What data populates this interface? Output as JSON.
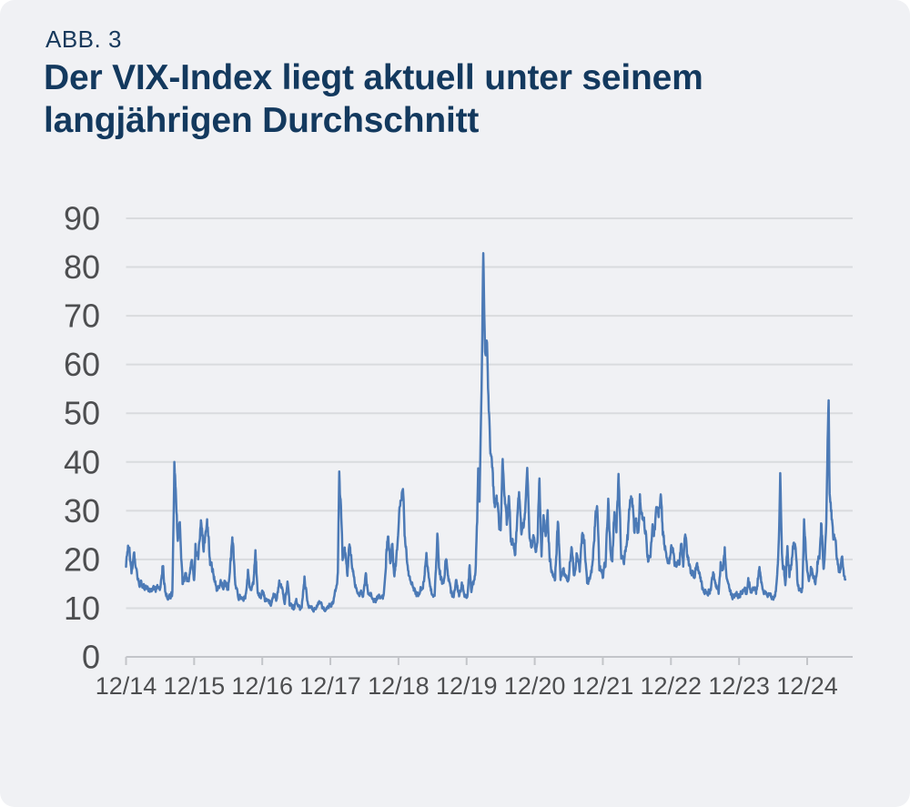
{
  "figure_label": "ABB. 3",
  "title": {
    "full": "Der VIX-Index liegt aktuell unter seinem langjährigen Durchschnitt",
    "line1": "Der VIX-Index liegt aktuell unter seinem",
    "line2": "langjährigen Durchschnitt"
  },
  "colors": {
    "card_background": "#f0f1f4",
    "title_color": "#13395e",
    "line_color": "#4c7ab6",
    "grid_color": "#d9dbde",
    "axis_color": "#c3c5c9",
    "tick_label_color": "#4d4e50"
  },
  "chart_data": {
    "type": "line",
    "series_name": "VIX-Index",
    "legend": "none",
    "grid": "horizontal",
    "x_tick_labels": [
      "12/14",
      "12/15",
      "12/16",
      "12/17",
      "12/18",
      "12/19",
      "12/20",
      "12/21",
      "12/22",
      "12/23",
      "12/24"
    ],
    "y_tick_labels": [
      "0",
      "10",
      "20",
      "30",
      "40",
      "50",
      "60",
      "70",
      "80",
      "90"
    ],
    "ylim": [
      0,
      90
    ],
    "xlim_years_from_first_tick": [
      0,
      10.56
    ],
    "points_unit": "[years after 12/14 tick, VIX close]",
    "points": [
      [
        0.0,
        19.2
      ],
      [
        0.04,
        23.4
      ],
      [
        0.08,
        17.3
      ],
      [
        0.12,
        20.8
      ],
      [
        0.17,
        15.6
      ],
      [
        0.25,
        14.2
      ],
      [
        0.33,
        13.8
      ],
      [
        0.42,
        14.0
      ],
      [
        0.5,
        14.3
      ],
      [
        0.54,
        18.8
      ],
      [
        0.58,
        12.8
      ],
      [
        0.63,
        12.2
      ],
      [
        0.68,
        13.0
      ],
      [
        0.71,
        40.7
      ],
      [
        0.74,
        30.5
      ],
      [
        0.76,
        24.5
      ],
      [
        0.79,
        27.5
      ],
      [
        0.83,
        15.2
      ],
      [
        0.88,
        16.5
      ],
      [
        0.92,
        15.3
      ],
      [
        0.96,
        20.0
      ],
      [
        1.0,
        15.8
      ],
      [
        1.02,
        22.5
      ],
      [
        1.06,
        20.5
      ],
      [
        1.1,
        27.3
      ],
      [
        1.14,
        22.0
      ],
      [
        1.19,
        27.9
      ],
      [
        1.24,
        19.0
      ],
      [
        1.29,
        16.5
      ],
      [
        1.33,
        14.0
      ],
      [
        1.38,
        15.5
      ],
      [
        1.42,
        14.7
      ],
      [
        1.46,
        15.3
      ],
      [
        1.5,
        14.0
      ],
      [
        1.54,
        20.0
      ],
      [
        1.56,
        25.8
      ],
      [
        1.6,
        15.0
      ],
      [
        1.65,
        12.5
      ],
      [
        1.7,
        11.9
      ],
      [
        1.75,
        12.0
      ],
      [
        1.79,
        17.5
      ],
      [
        1.83,
        13.0
      ],
      [
        1.87,
        15.5
      ],
      [
        1.9,
        22.3
      ],
      [
        1.93,
        13.3
      ],
      [
        1.97,
        12.0
      ],
      [
        2.0,
        13.2
      ],
      [
        2.04,
        11.8
      ],
      [
        2.08,
        11.5
      ],
      [
        2.13,
        11.2
      ],
      [
        2.17,
        12.9
      ],
      [
        2.21,
        11.5
      ],
      [
        2.25,
        15.6
      ],
      [
        2.29,
        13.5
      ],
      [
        2.33,
        10.6
      ],
      [
        2.37,
        15.2
      ],
      [
        2.4,
        10.5
      ],
      [
        2.46,
        10.0
      ],
      [
        2.5,
        11.2
      ],
      [
        2.54,
        9.9
      ],
      [
        2.58,
        10.3
      ],
      [
        2.62,
        16.0
      ],
      [
        2.67,
        10.6
      ],
      [
        2.71,
        10.2
      ],
      [
        2.75,
        9.7
      ],
      [
        2.79,
        10.0
      ],
      [
        2.83,
        11.3
      ],
      [
        2.88,
        10.2
      ],
      [
        2.92,
        9.6
      ],
      [
        2.96,
        10.2
      ],
      [
        3.0,
        11.0
      ],
      [
        3.04,
        11.3
      ],
      [
        3.08,
        13.5
      ],
      [
        3.11,
        17.3
      ],
      [
        3.13,
        37.3
      ],
      [
        3.16,
        29.0
      ],
      [
        3.18,
        19.5
      ],
      [
        3.21,
        22.5
      ],
      [
        3.25,
        16.5
      ],
      [
        3.28,
        23.0
      ],
      [
        3.31,
        20.0
      ],
      [
        3.35,
        15.9
      ],
      [
        3.4,
        13.2
      ],
      [
        3.44,
        13.5
      ],
      [
        3.48,
        12.2
      ],
      [
        3.52,
        16.9
      ],
      [
        3.56,
        12.8
      ],
      [
        3.6,
        12.9
      ],
      [
        3.65,
        11.3
      ],
      [
        3.7,
        12.5
      ],
      [
        3.74,
        12.0
      ],
      [
        3.78,
        12.1
      ],
      [
        3.82,
        21.0
      ],
      [
        3.85,
        25.0
      ],
      [
        3.88,
        19.5
      ],
      [
        3.91,
        22.5
      ],
      [
        3.94,
        16.5
      ],
      [
        3.98,
        21.5
      ],
      [
        4.02,
        30.1
      ],
      [
        4.065,
        36.1
      ],
      [
        4.09,
        25.5
      ],
      [
        4.13,
        19.0
      ],
      [
        4.17,
        16.0
      ],
      [
        4.21,
        14.5
      ],
      [
        4.25,
        13.5
      ],
      [
        4.29,
        12.5
      ],
      [
        4.33,
        13.8
      ],
      [
        4.37,
        15.5
      ],
      [
        4.41,
        20.5
      ],
      [
        4.45,
        16.0
      ],
      [
        4.49,
        13.0
      ],
      [
        4.53,
        12.2
      ],
      [
        4.57,
        24.6
      ],
      [
        4.6,
        18.0
      ],
      [
        4.63,
        16.0
      ],
      [
        4.66,
        14.7
      ],
      [
        4.7,
        20.5
      ],
      [
        4.73,
        17.0
      ],
      [
        4.77,
        12.8
      ],
      [
        4.81,
        12.5
      ],
      [
        4.85,
        15.9
      ],
      [
        4.89,
        12.6
      ],
      [
        4.93,
        14.8
      ],
      [
        4.97,
        12.5
      ],
      [
        5.01,
        12.4
      ],
      [
        5.045,
        18.8
      ],
      [
        5.07,
        13.7
      ],
      [
        5.1,
        14.8
      ],
      [
        5.13,
        17.1
      ],
      [
        5.155,
        27.9
      ],
      [
        5.17,
        40.1
      ],
      [
        5.19,
        33.4
      ],
      [
        5.22,
        54.5
      ],
      [
        5.245,
        82.7
      ],
      [
        5.27,
        61.6
      ],
      [
        5.3,
        65.5
      ],
      [
        5.32,
        53.5
      ],
      [
        5.35,
        41.7
      ],
      [
        5.38,
        38.2
      ],
      [
        5.41,
        31.0
      ],
      [
        5.44,
        34.0
      ],
      [
        5.47,
        28.2
      ],
      [
        5.5,
        24.5
      ],
      [
        5.53,
        40.8
      ],
      [
        5.56,
        33.5
      ],
      [
        5.59,
        27.1
      ],
      [
        5.62,
        33.0
      ],
      [
        5.65,
        24.5
      ],
      [
        5.68,
        22.9
      ],
      [
        5.71,
        21.4
      ],
      [
        5.74,
        26.4
      ],
      [
        5.77,
        33.6
      ],
      [
        5.8,
        25.9
      ],
      [
        5.83,
        26.4
      ],
      [
        5.86,
        29.4
      ],
      [
        5.89,
        40.3
      ],
      [
        5.92,
        24.8
      ],
      [
        5.95,
        22.5
      ],
      [
        5.98,
        25.0
      ],
      [
        6.01,
        21.3
      ],
      [
        6.04,
        25.3
      ],
      [
        6.07,
        37.2
      ],
      [
        6.1,
        21.0
      ],
      [
        6.13,
        28.9
      ],
      [
        6.16,
        24.0
      ],
      [
        6.19,
        28.6
      ],
      [
        6.22,
        19.8
      ],
      [
        6.26,
        17.3
      ],
      [
        6.3,
        16.3
      ],
      [
        6.34,
        27.6
      ],
      [
        6.38,
        16.7
      ],
      [
        6.42,
        18.0
      ],
      [
        6.46,
        15.7
      ],
      [
        6.5,
        16.3
      ],
      [
        6.54,
        22.5
      ],
      [
        6.58,
        17.0
      ],
      [
        6.62,
        21.5
      ],
      [
        6.66,
        16.5
      ],
      [
        6.7,
        25.7
      ],
      [
        6.73,
        23.0
      ],
      [
        6.77,
        15.0
      ],
      [
        6.81,
        16.0
      ],
      [
        6.85,
        19.0
      ],
      [
        6.89,
        28.6
      ],
      [
        6.915,
        31.1
      ],
      [
        6.95,
        18.7
      ],
      [
        7.0,
        17.2
      ],
      [
        7.04,
        19.2
      ],
      [
        7.08,
        31.9
      ],
      [
        7.11,
        22.0
      ],
      [
        7.14,
        20.0
      ],
      [
        7.17,
        30.3
      ],
      [
        7.2,
        26.0
      ],
      [
        7.23,
        36.5
      ],
      [
        7.27,
        21.0
      ],
      [
        7.3,
        18.9
      ],
      [
        7.33,
        21.5
      ],
      [
        7.37,
        25.0
      ],
      [
        7.4,
        33.4
      ],
      [
        7.43,
        32.5
      ],
      [
        7.46,
        26.0
      ],
      [
        7.49,
        28.5
      ],
      [
        7.52,
        24.8
      ],
      [
        7.545,
        34.0
      ],
      [
        7.58,
        28.0
      ],
      [
        7.61,
        27.0
      ],
      [
        7.64,
        23.5
      ],
      [
        7.67,
        19.5
      ],
      [
        7.7,
        21.5
      ],
      [
        7.73,
        26.2
      ],
      [
        7.76,
        25.5
      ],
      [
        7.79,
        31.6
      ],
      [
        7.82,
        29.0
      ],
      [
        7.85,
        33.6
      ],
      [
        7.88,
        26.0
      ],
      [
        7.91,
        22.5
      ],
      [
        7.94,
        20.5
      ],
      [
        7.97,
        19.4
      ],
      [
        8.0,
        22.0
      ],
      [
        8.03,
        21.7
      ],
      [
        8.06,
        18.4
      ],
      [
        8.09,
        18.8
      ],
      [
        8.12,
        18.5
      ],
      [
        8.15,
        22.9
      ],
      [
        8.18,
        19.0
      ],
      [
        8.21,
        26.5
      ],
      [
        8.24,
        21.0
      ],
      [
        8.27,
        18.7
      ],
      [
        8.31,
        17.0
      ],
      [
        8.35,
        16.5
      ],
      [
        8.38,
        20.0
      ],
      [
        8.42,
        17.0
      ],
      [
        8.46,
        14.5
      ],
      [
        8.5,
        13.6
      ],
      [
        8.54,
        13.5
      ],
      [
        8.58,
        13.6
      ],
      [
        8.62,
        17.0
      ],
      [
        8.66,
        15.0
      ],
      [
        8.7,
        13.1
      ],
      [
        8.73,
        18.9
      ],
      [
        8.76,
        17.5
      ],
      [
        8.79,
        21.7
      ],
      [
        8.82,
        16.0
      ],
      [
        8.85,
        14.2
      ],
      [
        8.89,
        12.5
      ],
      [
        8.93,
        12.7
      ],
      [
        8.97,
        12.6
      ],
      [
        9.0,
        12.5
      ],
      [
        9.04,
        13.1
      ],
      [
        9.08,
        14.3
      ],
      [
        9.11,
        12.9
      ],
      [
        9.135,
        15.8
      ],
      [
        9.17,
        13.4
      ],
      [
        9.21,
        14.2
      ],
      [
        9.25,
        13.0
      ],
      [
        9.3,
        18.7
      ],
      [
        9.33,
        15.0
      ],
      [
        9.37,
        13.5
      ],
      [
        9.41,
        12.5
      ],
      [
        9.45,
        13.2
      ],
      [
        9.49,
        12.3
      ],
      [
        9.53,
        12.5
      ],
      [
        9.56,
        16.4
      ],
      [
        9.585,
        23.4
      ],
      [
        9.605,
        38.6
      ],
      [
        9.63,
        20.7
      ],
      [
        9.66,
        17.5
      ],
      [
        9.68,
        15.0
      ],
      [
        9.71,
        22.4
      ],
      [
        9.74,
        16.5
      ],
      [
        9.77,
        19.0
      ],
      [
        9.8,
        23.4
      ],
      [
        9.83,
        21.9
      ],
      [
        9.86,
        15.2
      ],
      [
        9.9,
        13.5
      ],
      [
        9.93,
        14.2
      ],
      [
        9.955,
        27.6
      ],
      [
        9.98,
        21.0
      ],
      [
        10.0,
        17.4
      ],
      [
        10.03,
        16.0
      ],
      [
        10.06,
        18.6
      ],
      [
        10.09,
        15.8
      ],
      [
        10.12,
        15.3
      ],
      [
        10.15,
        19.4
      ],
      [
        10.18,
        21.0
      ],
      [
        10.21,
        27.9
      ],
      [
        10.24,
        17.5
      ],
      [
        10.265,
        22.0
      ],
      [
        10.285,
        30.0
      ],
      [
        10.3,
        45.3
      ],
      [
        10.315,
        52.3
      ],
      [
        10.33,
        33.0
      ],
      [
        10.36,
        28.5
      ],
      [
        10.39,
        24.7
      ],
      [
        10.42,
        23.0
      ],
      [
        10.45,
        18.6
      ],
      [
        10.48,
        17.2
      ],
      [
        10.51,
        20.6
      ],
      [
        10.54,
        16.8
      ],
      [
        10.56,
        15.1
      ]
    ]
  }
}
